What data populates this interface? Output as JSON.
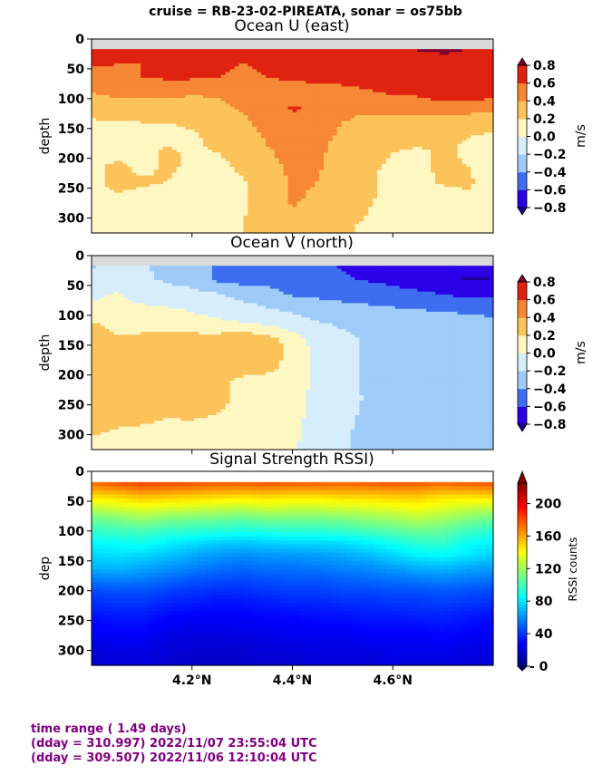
{
  "figure": {
    "suptitle": "cruise = RB-23-02-PIREATA,  sonar = os75bb"
  },
  "chart_data": [
    {
      "type": "heatmap",
      "title": "Ocean U (east)",
      "ylabel": "depth",
      "yticks": [
        0,
        50,
        100,
        150,
        200,
        250,
        300
      ],
      "ylim": [
        325,
        0
      ],
      "xlim": [
        4.0,
        4.8
      ],
      "colorbar": {
        "label": "m/s",
        "ticks": [
          "0.8",
          "0.6",
          "0.4",
          "0.2",
          "0.0",
          "−0.2",
          "−0.4",
          "−0.6",
          "−0.8"
        ],
        "levels": [
          -0.8,
          -0.6,
          -0.4,
          -0.2,
          0.0,
          0.2,
          0.4,
          0.6,
          0.8
        ],
        "colors": [
          "#2a00e6",
          "#3f6df0",
          "#9ecbf7",
          "#d6edfb",
          "#fff7c2",
          "#fbc35a",
          "#f68735",
          "#e02210"
        ],
        "extend_high": "#7a0030",
        "extend_low": "#1a0094",
        "no_data": "#d9d9d9"
      },
      "field": {
        "x": [
          4.0,
          4.05,
          4.1,
          4.15,
          4.2,
          4.25,
          4.3,
          4.35,
          4.4,
          4.45,
          4.5,
          4.55,
          4.6,
          4.65,
          4.7,
          4.75,
          4.8
        ],
        "depth": [
          15,
          40,
          65,
          90,
          115,
          140,
          165,
          190,
          215,
          240,
          265,
          290,
          315
        ],
        "values": [
          [
            0.62,
            0.62,
            0.6,
            0.6,
            0.62,
            0.6,
            0.62,
            0.64,
            0.64,
            0.66,
            0.7,
            0.72,
            0.74,
            0.82,
            0.84,
            0.8,
            0.78
          ],
          [
            0.62,
            0.6,
            0.6,
            0.62,
            0.64,
            0.62,
            0.6,
            0.62,
            0.66,
            0.64,
            0.66,
            0.68,
            0.7,
            0.72,
            0.74,
            0.76,
            0.74
          ],
          [
            0.56,
            0.58,
            0.6,
            0.62,
            0.62,
            0.6,
            0.58,
            0.6,
            0.62,
            0.64,
            0.64,
            0.66,
            0.66,
            0.68,
            0.7,
            0.72,
            0.7
          ],
          [
            0.4,
            0.42,
            0.44,
            0.46,
            0.42,
            0.44,
            0.48,
            0.5,
            0.52,
            0.54,
            0.56,
            0.58,
            0.62,
            0.64,
            0.76,
            0.72,
            0.68
          ],
          [
            0.34,
            0.36,
            0.34,
            0.32,
            0.3,
            0.34,
            0.42,
            0.54,
            0.62,
            0.56,
            0.46,
            0.44,
            0.46,
            0.48,
            0.5,
            0.5,
            0.48
          ],
          [
            0.16,
            0.18,
            0.2,
            0.2,
            0.22,
            0.26,
            0.36,
            0.46,
            0.56,
            0.5,
            0.4,
            0.34,
            0.34,
            0.32,
            0.3,
            0.26,
            0.24
          ],
          [
            0.1,
            0.12,
            0.14,
            0.16,
            0.18,
            0.24,
            0.32,
            0.42,
            0.5,
            0.46,
            0.36,
            0.28,
            0.26,
            0.24,
            0.22,
            0.2,
            0.18
          ],
          [
            0.1,
            0.12,
            0.16,
            0.22,
            0.18,
            0.2,
            0.28,
            0.38,
            0.46,
            0.44,
            0.32,
            0.24,
            0.2,
            0.18,
            0.22,
            0.18,
            0.16
          ],
          [
            0.14,
            0.26,
            0.14,
            0.24,
            0.16,
            0.14,
            0.24,
            0.34,
            0.44,
            0.42,
            0.32,
            0.22,
            0.18,
            0.16,
            0.24,
            0.2,
            0.16
          ],
          [
            0.12,
            0.28,
            0.24,
            0.2,
            0.12,
            0.1,
            0.18,
            0.3,
            0.42,
            0.4,
            0.3,
            0.22,
            0.16,
            0.14,
            0.22,
            0.22,
            0.14
          ],
          [
            0.1,
            0.16,
            0.12,
            0.1,
            0.08,
            0.1,
            0.18,
            0.32,
            0.42,
            0.38,
            0.28,
            0.22,
            0.16,
            0.12,
            0.14,
            0.18,
            0.1
          ],
          [
            0.08,
            0.1,
            0.08,
            0.06,
            0.06,
            0.08,
            0.18,
            0.3,
            0.4,
            0.34,
            0.26,
            0.2,
            0.14,
            0.1,
            0.08,
            0.06,
            0.04
          ],
          [
            0.06,
            0.08,
            0.06,
            0.06,
            0.06,
            0.1,
            0.2,
            0.26,
            0.3,
            0.24,
            0.22,
            0.18,
            0.12,
            0.08,
            0.06,
            0.04,
            0.02
          ]
        ]
      }
    },
    {
      "type": "heatmap",
      "title": "Ocean V (north)",
      "ylabel": "depth",
      "yticks": [
        0,
        50,
        100,
        150,
        200,
        250,
        300
      ],
      "ylim": [
        325,
        0
      ],
      "xlim": [
        4.0,
        4.8
      ],
      "colorbar": {
        "label": "m/s",
        "ticks": [
          "0.8",
          "0.6",
          "0.4",
          "0.2",
          "0.0",
          "−0.2",
          "−0.4",
          "−0.6",
          "−0.8"
        ],
        "levels": [
          -0.8,
          -0.6,
          -0.4,
          -0.2,
          0.0,
          0.2,
          0.4,
          0.6,
          0.8
        ],
        "colors": [
          "#2a00e6",
          "#3f6df0",
          "#9ecbf7",
          "#d6edfb",
          "#fff7c2",
          "#fbc35a",
          "#f68735",
          "#e02210"
        ],
        "extend_high": "#7a0030",
        "extend_low": "#1a0094",
        "no_data": "#d9d9d9"
      },
      "field": {
        "x": [
          4.0,
          4.05,
          4.1,
          4.15,
          4.2,
          4.25,
          4.3,
          4.35,
          4.4,
          4.45,
          4.5,
          4.55,
          4.6,
          4.65,
          4.7,
          4.75,
          4.8
        ],
        "depth": [
          15,
          40,
          65,
          90,
          115,
          140,
          165,
          190,
          215,
          240,
          265,
          290,
          315
        ],
        "values": [
          [
            -0.22,
            -0.16,
            -0.18,
            -0.24,
            -0.3,
            -0.42,
            -0.46,
            -0.48,
            -0.5,
            -0.52,
            -0.62,
            -0.64,
            -0.66,
            -0.7,
            -0.72,
            -0.74,
            -0.72
          ],
          [
            -0.16,
            -0.12,
            -0.18,
            -0.22,
            -0.28,
            -0.44,
            -0.48,
            -0.46,
            -0.5,
            -0.52,
            -0.58,
            -0.62,
            -0.66,
            -0.7,
            -0.74,
            -0.82,
            -0.8
          ],
          [
            -0.04,
            0.02,
            -0.08,
            -0.12,
            -0.14,
            -0.18,
            -0.26,
            -0.34,
            -0.42,
            -0.44,
            -0.46,
            -0.48,
            -0.52,
            -0.56,
            -0.6,
            -0.64,
            -0.66
          ],
          [
            0.04,
            0.06,
            0.04,
            0.02,
            -0.02,
            -0.06,
            -0.12,
            -0.18,
            -0.24,
            -0.3,
            -0.34,
            -0.36,
            -0.38,
            -0.4,
            -0.42,
            -0.44,
            -0.46
          ],
          [
            0.22,
            0.16,
            0.14,
            0.12,
            0.08,
            0.04,
            0.02,
            -0.02,
            -0.1,
            -0.18,
            -0.22,
            -0.24,
            -0.26,
            -0.28,
            -0.3,
            -0.32,
            -0.34
          ],
          [
            0.24,
            0.22,
            0.24,
            0.26,
            0.28,
            0.3,
            0.34,
            0.3,
            0.1,
            -0.08,
            -0.16,
            -0.22,
            -0.24,
            -0.24,
            -0.24,
            -0.26,
            -0.26
          ],
          [
            0.26,
            0.24,
            0.26,
            0.28,
            0.3,
            0.32,
            0.36,
            0.32,
            0.14,
            -0.06,
            -0.16,
            -0.22,
            -0.24,
            -0.26,
            -0.26,
            -0.26,
            -0.28
          ],
          [
            0.22,
            0.26,
            0.3,
            0.24,
            0.26,
            0.22,
            0.28,
            0.26,
            0.1,
            -0.04,
            -0.14,
            -0.22,
            -0.24,
            -0.26,
            -0.28,
            -0.3,
            -0.28
          ],
          [
            0.24,
            0.28,
            0.26,
            0.22,
            0.3,
            0.28,
            0.12,
            0.06,
            0.04,
            -0.02,
            -0.12,
            -0.24,
            -0.26,
            -0.26,
            -0.26,
            -0.28,
            -0.26
          ],
          [
            0.26,
            0.3,
            0.28,
            0.24,
            0.32,
            0.3,
            0.1,
            0.04,
            0.02,
            -0.02,
            -0.12,
            -0.22,
            -0.28,
            -0.24,
            -0.24,
            -0.26,
            -0.24
          ],
          [
            0.28,
            0.24,
            0.26,
            0.22,
            0.24,
            0.2,
            0.12,
            0.06,
            0.02,
            -0.02,
            -0.14,
            -0.24,
            -0.26,
            -0.22,
            -0.24,
            -0.24,
            -0.22
          ],
          [
            0.22,
            0.2,
            0.18,
            0.16,
            0.14,
            0.12,
            0.1,
            0.08,
            0.02,
            -0.04,
            -0.16,
            -0.26,
            -0.28,
            -0.24,
            -0.22,
            -0.22,
            -0.2
          ],
          [
            0.18,
            0.16,
            0.14,
            0.12,
            0.1,
            0.1,
            0.08,
            0.06,
            0.02,
            -0.06,
            -0.18,
            -0.26,
            -0.28,
            -0.24,
            -0.22,
            -0.22,
            -0.2
          ]
        ]
      }
    },
    {
      "type": "heatmap",
      "title": "Signal Strength RSSI)",
      "ylabel": "dep",
      "yticks": [
        0,
        50,
        100,
        150,
        200,
        250,
        300
      ],
      "ylim": [
        325,
        0
      ],
      "xlim": [
        4.0,
        4.8
      ],
      "xticks": [
        "4.2°N",
        "4.4°N",
        "4.6°N"
      ],
      "xtick_values": [
        4.2,
        4.4,
        4.6
      ],
      "colorbar": {
        "label": "RSSI counts",
        "ticks": [
          "200",
          "160",
          "120",
          "80",
          "40",
          "- 0"
        ],
        "tick_values": [
          200,
          160,
          120,
          80,
          40,
          0
        ],
        "vmin": 0,
        "vmax": 225,
        "colormap": "jet",
        "extend_high": "#7f0000",
        "extend_low": "#00007f"
      },
      "field": {
        "x": [
          4.0,
          4.05,
          4.1,
          4.15,
          4.2,
          4.25,
          4.3,
          4.35,
          4.4,
          4.45,
          4.5,
          4.55,
          4.6,
          4.65,
          4.7,
          4.75,
          4.8
        ],
        "depth": [
          20,
          40,
          60,
          80,
          100,
          120,
          140,
          160,
          180,
          200,
          220,
          240,
          260,
          280,
          300,
          320
        ],
        "values": [
          [
            172,
            178,
            182,
            180,
            178,
            176,
            176,
            178,
            176,
            176,
            174,
            176,
            178,
            176,
            174,
            176,
            178
          ],
          [
            150,
            152,
            158,
            156,
            154,
            152,
            150,
            152,
            150,
            150,
            152,
            152,
            154,
            154,
            150,
            150,
            152
          ],
          [
            128,
            132,
            136,
            134,
            132,
            130,
            128,
            132,
            130,
            130,
            132,
            134,
            136,
            140,
            134,
            130,
            128
          ],
          [
            108,
            112,
            118,
            112,
            110,
            108,
            106,
            110,
            110,
            110,
            112,
            116,
            120,
            124,
            120,
            112,
            108
          ],
          [
            96,
            98,
            100,
            96,
            94,
            92,
            90,
            92,
            94,
            94,
            96,
            100,
            104,
            108,
            106,
            98,
            94
          ],
          [
            84,
            86,
            88,
            82,
            78,
            74,
            72,
            74,
            76,
            76,
            78,
            82,
            88,
            94,
            96,
            86,
            82
          ],
          [
            76,
            78,
            76,
            72,
            66,
            62,
            60,
            62,
            62,
            64,
            66,
            70,
            76,
            82,
            84,
            80,
            74
          ],
          [
            68,
            70,
            66,
            62,
            58,
            54,
            52,
            54,
            54,
            56,
            58,
            60,
            64,
            68,
            70,
            66,
            64
          ],
          [
            56,
            58,
            56,
            52,
            48,
            46,
            44,
            46,
            48,
            48,
            50,
            52,
            54,
            56,
            58,
            56,
            54
          ],
          [
            44,
            46,
            46,
            42,
            40,
            38,
            38,
            40,
            42,
            42,
            44,
            44,
            46,
            46,
            48,
            46,
            44
          ],
          [
            38,
            40,
            40,
            36,
            34,
            32,
            32,
            34,
            36,
            36,
            38,
            38,
            40,
            40,
            42,
            40,
            38
          ],
          [
            32,
            34,
            34,
            30,
            28,
            28,
            28,
            30,
            30,
            32,
            32,
            34,
            34,
            36,
            36,
            34,
            32
          ],
          [
            28,
            30,
            30,
            26,
            24,
            24,
            24,
            26,
            26,
            28,
            28,
            30,
            30,
            30,
            32,
            30,
            28
          ],
          [
            24,
            26,
            26,
            22,
            20,
            20,
            22,
            22,
            24,
            24,
            24,
            26,
            26,
            26,
            28,
            26,
            24
          ],
          [
            20,
            22,
            22,
            20,
            18,
            18,
            18,
            20,
            20,
            22,
            22,
            22,
            24,
            24,
            24,
            22,
            22
          ],
          [
            18,
            20,
            20,
            18,
            16,
            16,
            16,
            18,
            18,
            20,
            20,
            20,
            22,
            22,
            22,
            20,
            20
          ]
        ]
      }
    }
  ],
  "footer": {
    "line1": "time range ( 1.49 days)",
    "line2": "(dday = 310.997) 2022/11/07 23:55:04 UTC",
    "line3": "(dday = 309.507) 2022/11/06 12:10:04 UTC"
  }
}
